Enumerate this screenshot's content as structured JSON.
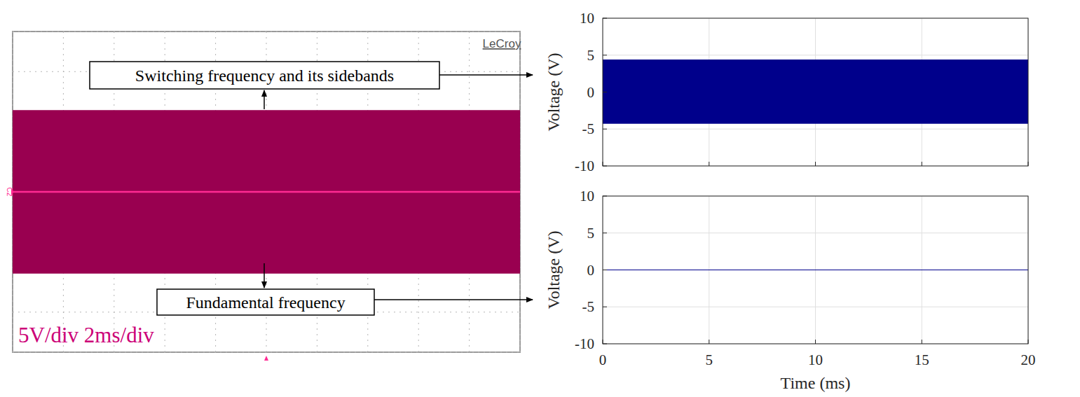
{
  "chart_data": [
    {
      "type": "scope",
      "x": [
        0,
        20
      ],
      "xlim": [
        0,
        20
      ],
      "ylim": [
        -20,
        20
      ],
      "xticks": [
        0,
        2,
        4,
        6,
        8,
        10,
        12,
        14,
        16,
        18,
        20
      ],
      "yticks": [
        -20,
        -15,
        -10,
        -5,
        0,
        5,
        10,
        15,
        20
      ],
      "grid": true,
      "tick_labels": false,
      "series": [
        {
          "type": "band",
          "color": "#990050",
          "upper": [
            10.2,
            10.2
          ],
          "lower": [
            -10.2,
            -10.2
          ]
        },
        {
          "type": "line",
          "color": "#ff2a93",
          "values": [
            0,
            0
          ]
        }
      ],
      "annotations": [
        {
          "text": "LeCroy"
        },
        {
          "text": "C2"
        },
        {
          "text": "5V/div 2ms/div"
        }
      ]
    },
    {
      "type": "line",
      "x": [
        0,
        20
      ],
      "xlim": [
        0,
        20
      ],
      "ylim": [
        -10,
        10
      ],
      "xticks": [
        0,
        5,
        10,
        15,
        20
      ],
      "yticks": [
        -10,
        -5,
        0,
        5,
        10
      ],
      "grid": true,
      "tick_labels": "y",
      "y_label": "Voltage (V)",
      "series": [
        {
          "type": "band",
          "color": "#00008b",
          "upper": [
            4.4,
            4.4
          ],
          "lower": [
            -4.3,
            -4.3
          ]
        }
      ]
    },
    {
      "type": "line",
      "x": [
        0,
        20
      ],
      "xlim": [
        0,
        20
      ],
      "ylim": [
        -10,
        10
      ],
      "xticks": [
        0,
        5,
        10,
        15,
        20
      ],
      "yticks": [
        -10,
        -5,
        0,
        5,
        10
      ],
      "grid": true,
      "x_label": "Time (ms)",
      "y_label": "Voltage (V)",
      "series": [
        {
          "type": "line",
          "color": "#00008b",
          "values": [
            0,
            0
          ]
        }
      ]
    }
  ],
  "annotations": [
    {
      "text": "Switching frequency and its sidebands"
    },
    {
      "text": "Fundamental frequency"
    }
  ]
}
